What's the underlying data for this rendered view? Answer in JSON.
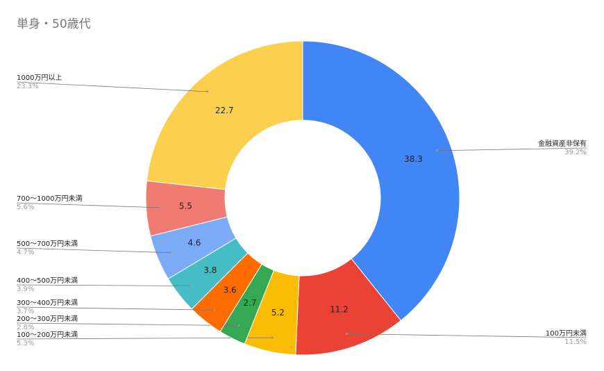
{
  "chart_data": {
    "type": "pie",
    "title": "単身・50歳代",
    "donut": true,
    "slices": [
      {
        "label": "金融資産非保有",
        "value": 38.3,
        "percent": "39.2%",
        "color": "#4285f4",
        "side": "right"
      },
      {
        "label": "100万円未満",
        "value": 11.2,
        "percent": "11.5%",
        "color": "#ea4335",
        "side": "right"
      },
      {
        "label": "100～200万円未満",
        "value": 5.2,
        "percent": "5.3%",
        "color": "#fbbc04",
        "side": "left"
      },
      {
        "label": "200～300万円未満",
        "value": 2.7,
        "percent": "2.8%",
        "color": "#34a853",
        "side": "left"
      },
      {
        "label": "300～400万円未満",
        "value": 3.6,
        "percent": "3.7%",
        "color": "#ff6d01",
        "side": "left"
      },
      {
        "label": "400～500万円未満",
        "value": 3.8,
        "percent": "3.9%",
        "color": "#46bdc6",
        "side": "left"
      },
      {
        "label": "500～700万円未満",
        "value": 4.6,
        "percent": "4.7%",
        "color": "#7baaf7",
        "side": "left"
      },
      {
        "label": "700～1000万円未満",
        "value": 5.5,
        "percent": "5.6%",
        "color": "#f07b72",
        "side": "left"
      },
      {
        "label": "1000万円以上",
        "value": 22.7,
        "percent": "23.3%",
        "color": "#fcd04f",
        "side": "left"
      }
    ]
  }
}
